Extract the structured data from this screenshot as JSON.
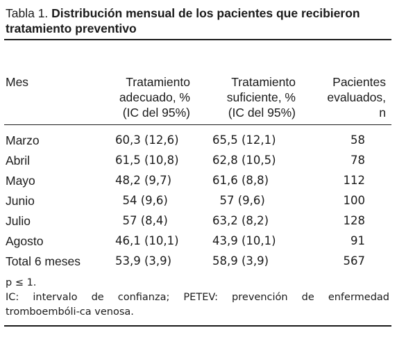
{
  "caption": {
    "lead": "Tabla 1. ",
    "title": "Distribución mensual de los pacientes que recibieron tratamiento preventivo"
  },
  "table": {
    "headers": [
      [
        "Mes"
      ],
      [
        "Tratamiento",
        "adecuado, %",
        "(IC del 95%)"
      ],
      [
        "Tratamiento",
        "suficiente, %",
        "(IC del 95%)"
      ],
      [
        "Pacientes",
        "evaluados,",
        "n"
      ]
    ],
    "rows": [
      [
        "Marzo",
        "60,3 (12,6)",
        "65,5 (12,1)",
        "58"
      ],
      [
        "Abril",
        "61,5 (10,8)",
        "62,8 (10,5)",
        "78"
      ],
      [
        "Mayo",
        "48,2 (9,7)",
        "61,6 (8,8)",
        "112"
      ],
      [
        "Junio",
        "  54 (9,6)",
        "  57 (9,6)",
        "100"
      ],
      [
        "Julio",
        "  57 (8,4)",
        "63,2 (8,2)",
        "128"
      ],
      [
        "Agosto",
        "46,1 (10,1)",
        "43,9 (10,1)",
        "91"
      ],
      [
        "Total 6 meses",
        "53,9 (3,9)",
        "58,9 (3,9)",
        "567"
      ]
    ]
  },
  "notes": {
    "significance": "p ≤ 1.",
    "abbreviations": "IC: intervalo de confianza; PETEV: prevención de enfermedad tromboembóli-ca venosa."
  }
}
